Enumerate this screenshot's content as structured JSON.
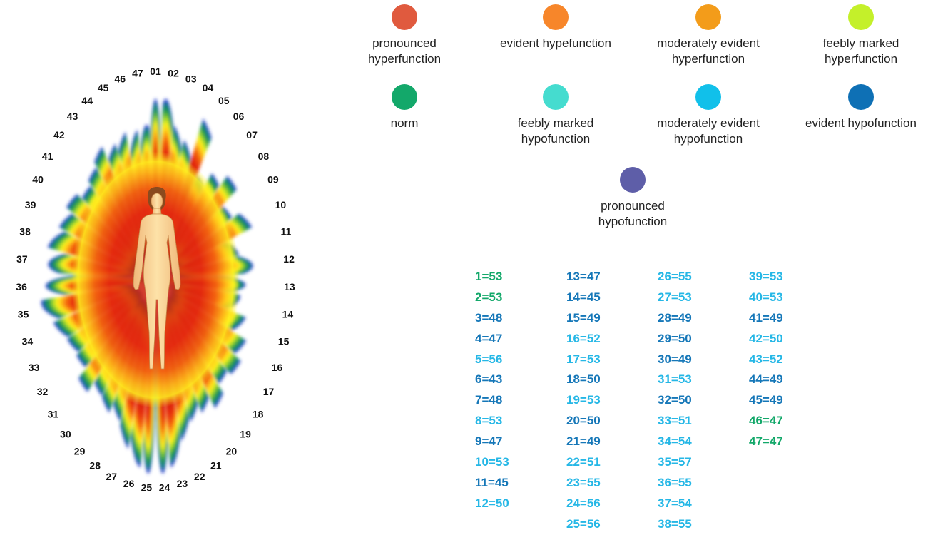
{
  "legend": [
    {
      "label": "pronounced hyperfunction",
      "lines": [
        "pronounced",
        "hyperfunction"
      ],
      "color": "#e05a3e"
    },
    {
      "label": "evident hypefunction",
      "lines": [
        "evident hypefunction"
      ],
      "color": "#f7862a"
    },
    {
      "label": "moderately evident hyperfunction",
      "lines": [
        "moderately evident",
        "hyperfunction"
      ],
      "color": "#f39c1a"
    },
    {
      "label": "feebly marked hyperfunction",
      "lines": [
        "feebly marked",
        "hyperfunction"
      ],
      "color": "#c4f02a"
    },
    {
      "label": "norm",
      "lines": [
        "norm"
      ],
      "color": "#13a86a"
    },
    {
      "label": "feebly marked hypofunction",
      "lines": [
        "feebly marked",
        "hypofunction"
      ],
      "color": "#45dccf"
    },
    {
      "label": "moderately evident hypofunction",
      "lines": [
        "moderately evident",
        "hypofunction"
      ],
      "color": "#11c0ea"
    },
    {
      "label": "evident hypofunction",
      "lines": [
        "evident hypofunction"
      ],
      "color": "#0e70b5"
    },
    {
      "label": "pronounced hypofunction",
      "lines": [
        "pronounced",
        "hypofunction"
      ],
      "color": "#5e5ea8"
    }
  ],
  "sector_labels": [
    "01",
    "02",
    "03",
    "04",
    "05",
    "06",
    "07",
    "08",
    "09",
    "10",
    "11",
    "12",
    "13",
    "14",
    "15",
    "16",
    "17",
    "18",
    "19",
    "20",
    "21",
    "22",
    "23",
    "24",
    "25",
    "26",
    "27",
    "28",
    "29",
    "30",
    "31",
    "32",
    "33",
    "34",
    "35",
    "36",
    "37",
    "38",
    "39",
    "40",
    "41",
    "42",
    "43",
    "44",
    "45",
    "46",
    "47"
  ],
  "values": [
    {
      "text": "1=53",
      "color": "#13a86a"
    },
    {
      "text": "2=53",
      "color": "#13a86a"
    },
    {
      "text": "3=48",
      "color": "#1577b8"
    },
    {
      "text": "4=47",
      "color": "#1577b8"
    },
    {
      "text": "5=56",
      "color": "#25b7e6"
    },
    {
      "text": "6=43",
      "color": "#1577b8"
    },
    {
      "text": "7=48",
      "color": "#1577b8"
    },
    {
      "text": "8=53",
      "color": "#25b7e6"
    },
    {
      "text": "9=47",
      "color": "#1577b8"
    },
    {
      "text": "10=53",
      "color": "#25b7e6"
    },
    {
      "text": "11=45",
      "color": "#1577b8"
    },
    {
      "text": "12=50",
      "color": "#25b7e6"
    },
    {
      "text": "13=47",
      "color": "#1577b8"
    },
    {
      "text": "14=45",
      "color": "#1577b8"
    },
    {
      "text": "15=49",
      "color": "#1577b8"
    },
    {
      "text": "16=52",
      "color": "#25b7e6"
    },
    {
      "text": "17=53",
      "color": "#25b7e6"
    },
    {
      "text": "18=50",
      "color": "#1577b8"
    },
    {
      "text": "19=53",
      "color": "#25b7e6"
    },
    {
      "text": "20=50",
      "color": "#1577b8"
    },
    {
      "text": "21=49",
      "color": "#1577b8"
    },
    {
      "text": "22=51",
      "color": "#25b7e6"
    },
    {
      "text": "23=55",
      "color": "#25b7e6"
    },
    {
      "text": "24=56",
      "color": "#25b7e6"
    },
    {
      "text": "25=56",
      "color": "#25b7e6"
    },
    {
      "text": "26=55",
      "color": "#25b7e6"
    },
    {
      "text": "27=53",
      "color": "#25b7e6"
    },
    {
      "text": "28=49",
      "color": "#1577b8"
    },
    {
      "text": "29=50",
      "color": "#1577b8"
    },
    {
      "text": "30=49",
      "color": "#1577b8"
    },
    {
      "text": "31=53",
      "color": "#25b7e6"
    },
    {
      "text": "32=50",
      "color": "#1577b8"
    },
    {
      "text": "33=51",
      "color": "#25b7e6"
    },
    {
      "text": "34=54",
      "color": "#25b7e6"
    },
    {
      "text": "35=57",
      "color": "#25b7e6"
    },
    {
      "text": "36=55",
      "color": "#25b7e6"
    },
    {
      "text": "37=54",
      "color": "#25b7e6"
    },
    {
      "text": "38=55",
      "color": "#25b7e6"
    },
    {
      "text": "39=53",
      "color": "#25b7e6"
    },
    {
      "text": "40=53",
      "color": "#25b7e6"
    },
    {
      "text": "41=49",
      "color": "#1577b8"
    },
    {
      "text": "42=50",
      "color": "#25b7e6"
    },
    {
      "text": "43=52",
      "color": "#25b7e6"
    },
    {
      "text": "44=49",
      "color": "#1577b8"
    },
    {
      "text": "45=49",
      "color": "#1577b8"
    },
    {
      "text": "46=47",
      "color": "#13a86a"
    },
    {
      "text": "47=47",
      "color": "#13a86a"
    }
  ]
}
